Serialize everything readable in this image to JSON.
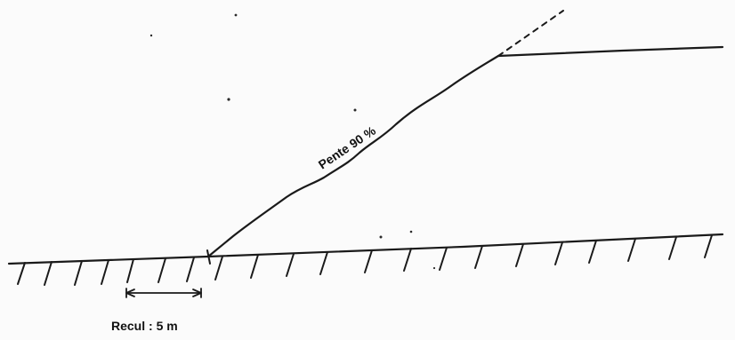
{
  "diagram": {
    "slope_label": "Pente 90 %",
    "setback_label": "Recul : 5 m",
    "colors": {
      "ink": "#1a1a1a",
      "paper": "#fbfbfb",
      "speck": "#2a2a2a"
    }
  }
}
